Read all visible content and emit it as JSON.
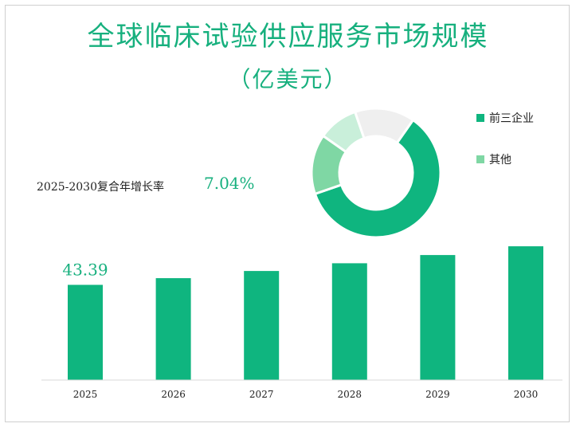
{
  "title": "全球临床试验供应服务市场规模",
  "subtitle": "（亿美元）",
  "cagr": {
    "label": "2025-2030复合年增长率",
    "value": "7.04%"
  },
  "colors": {
    "accent": "#0fb57f",
    "light": "#7fd7a4",
    "lighter": "#c9efda",
    "gray": "#efefef"
  },
  "chart_data": [
    {
      "type": "bar",
      "title": "",
      "categories": [
        "2025",
        "2026",
        "2027",
        "2028",
        "2029",
        "2030"
      ],
      "values": [
        43.39,
        46.45,
        49.72,
        53.22,
        56.97,
        60.98
      ],
      "data_labels": [
        "43.39",
        "",
        "",
        "",
        "",
        ""
      ],
      "xlabel": "",
      "ylabel": "",
      "ylim": [
        0,
        61
      ],
      "grid": false,
      "color": "#0fb57f"
    },
    {
      "type": "pie",
      "title": "",
      "donut": true,
      "legend_position": "right",
      "slices": [
        {
          "name": "前三企业",
          "value": 60,
          "color": "#0fb57f"
        },
        {
          "name": "其他",
          "value": 15,
          "color": "#7fd7a4"
        },
        {
          "name": "",
          "value": 10,
          "color": "#c9efda"
        },
        {
          "name": "",
          "value": 15,
          "color": "#efefef"
        }
      ],
      "legend": [
        {
          "name": "前三企业",
          "color": "#0fb57f"
        },
        {
          "name": "其他",
          "color": "#7fd7a4"
        }
      ]
    }
  ]
}
